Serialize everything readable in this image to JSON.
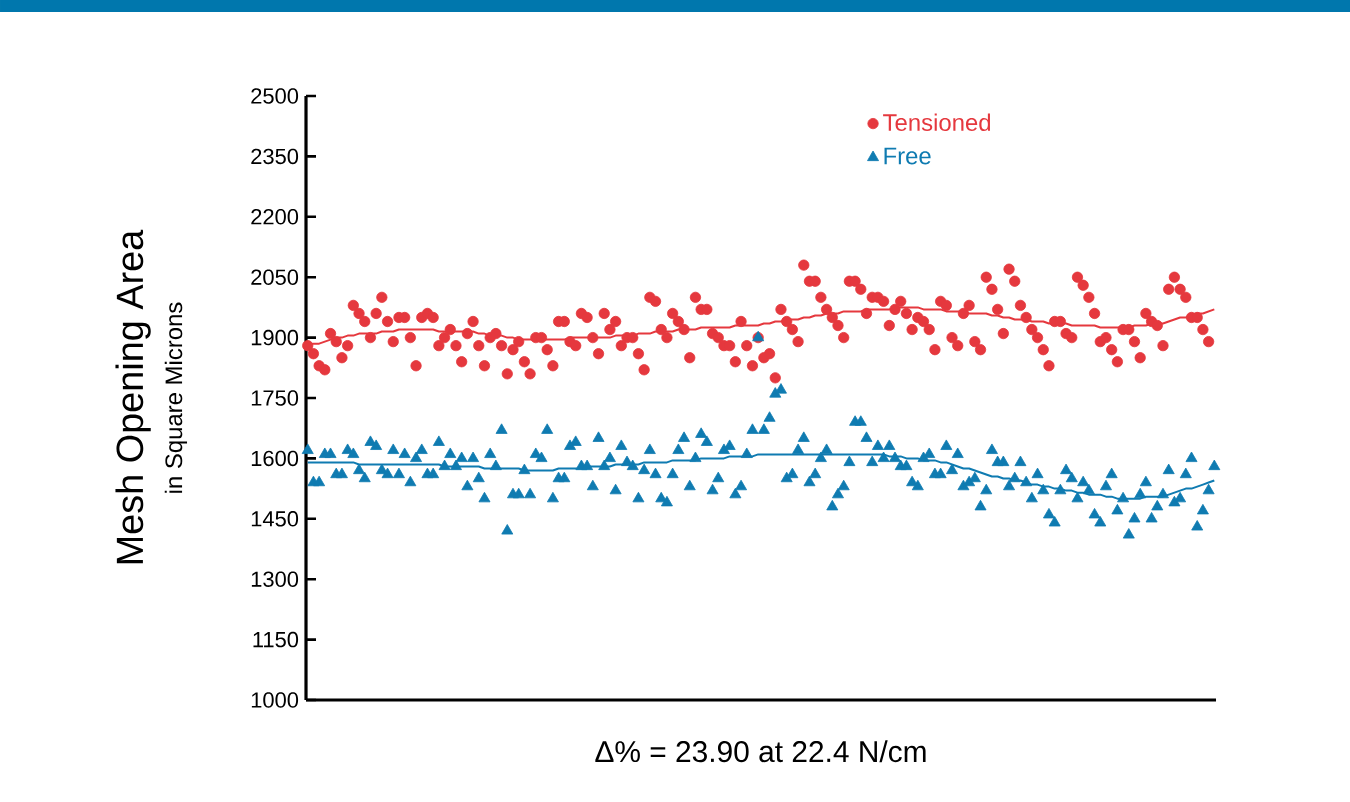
{
  "chart_data": {
    "type": "scatter",
    "ylabel": "Mesh Opening Area",
    "xlabel": "Δ% = 23.90 at 22.4 N/cm",
    "annotations": [
      "in Square Microns"
    ],
    "categories": [
      null,
      null,
      null,
      null,
      null,
      null,
      null,
      null,
      null,
      null,
      null,
      null,
      null,
      null,
      null,
      null,
      null,
      null,
      null,
      null,
      null,
      null,
      null,
      null,
      null,
      null,
      null,
      null,
      null,
      null,
      null,
      null,
      null,
      null,
      null,
      null,
      null,
      null,
      null,
      null,
      null,
      null,
      null,
      null,
      null,
      null,
      null,
      null,
      null,
      null,
      null,
      null,
      null,
      null,
      null,
      null,
      null,
      null,
      null,
      null,
      null,
      null,
      null,
      null,
      null,
      null,
      null,
      null,
      null,
      null,
      null,
      null,
      null,
      null,
      null,
      null,
      null,
      null,
      null,
      null,
      null,
      null,
      null,
      null,
      null,
      null,
      null,
      null,
      null,
      null,
      null,
      null,
      null,
      null,
      null,
      null,
      null,
      null,
      null,
      null,
      null,
      null,
      null,
      null,
      null,
      null,
      null,
      null,
      null,
      null,
      null,
      null,
      null,
      null,
      null,
      null,
      null,
      null,
      null,
      null,
      null,
      null,
      null,
      null,
      null,
      null,
      null,
      null,
      null,
      null,
      null,
      null,
      null,
      null,
      null,
      null,
      null,
      null,
      null,
      null,
      null,
      null,
      null,
      null,
      null,
      null,
      null,
      null,
      null,
      null,
      null,
      null,
      null,
      null,
      null,
      null,
      null,
      null,
      null,
      null
    ],
    "ylim": [
      1000,
      2500
    ],
    "yticks": [
      1000,
      1150,
      1300,
      1450,
      1600,
      1750,
      1900,
      2050,
      2200,
      2350,
      2500
    ],
    "tick_labels": "y",
    "legend": "top right",
    "series": [
      {
        "name": "Tensioned",
        "marker": "circle",
        "color": "#e5383e",
        "values": [
          1880,
          1860,
          1830,
          1820,
          1910,
          1890,
          1850,
          1880,
          1980,
          1960,
          1940,
          1900,
          1960,
          2000,
          1940,
          1890,
          1950,
          1950,
          1900,
          1830,
          1950,
          1960,
          1950,
          1880,
          1900,
          1920,
          1880,
          1840,
          1910,
          1940,
          1880,
          1830,
          1900,
          1910,
          1880,
          1810,
          1870,
          1890,
          1840,
          1810,
          1900,
          1900,
          1870,
          1830,
          1940,
          1940,
          1890,
          1880,
          1960,
          1950,
          1900,
          1860,
          1960,
          1920,
          1940,
          1880,
          1900,
          1900,
          1860,
          1820,
          2000,
          1990,
          1920,
          1900,
          1960,
          1940,
          1920,
          1850,
          2000,
          1970,
          1970,
          1910,
          1900,
          1880,
          1880,
          1840,
          1940,
          1880,
          1830,
          1900,
          1850,
          1860,
          1800,
          1970,
          1940,
          1920,
          1890,
          2080,
          2040,
          2040,
          2000,
          1970,
          1950,
          1930,
          1900,
          2040,
          2040,
          2020,
          1960,
          2000,
          2000,
          1990,
          1930,
          1970,
          1990,
          1960,
          1920,
          1950,
          1940,
          1920,
          1870,
          1990,
          1980,
          1900,
          1880,
          1960,
          1980,
          1890,
          1870,
          2050,
          2020,
          1970,
          1910,
          2070,
          2040,
          1980,
          1950,
          1920,
          1900,
          1870,
          1830,
          1940,
          1940,
          1910,
          1900,
          2050,
          2030,
          2000,
          1960,
          1890,
          1900,
          1870,
          1840,
          1920,
          1920,
          1890,
          1850,
          1960,
          1940,
          1930,
          1880,
          2020,
          2050,
          2020,
          2000,
          1950,
          1950,
          1920,
          1890,
          null
        ]
      },
      {
        "name": "Free",
        "marker": "triangle",
        "color": "#0f7bb1",
        "values": [
          1620,
          1540,
          1540,
          1610,
          1610,
          1560,
          1560,
          1620,
          1610,
          1570,
          1550,
          1640,
          1630,
          1570,
          1560,
          1620,
          1560,
          1610,
          1540,
          1600,
          1620,
          1560,
          1560,
          1640,
          1580,
          1610,
          1580,
          1600,
          1530,
          1600,
          1550,
          1500,
          1610,
          1580,
          1670,
          1420,
          1510,
          1510,
          1570,
          1510,
          1610,
          1600,
          1670,
          1500,
          1550,
          1550,
          1630,
          1640,
          1580,
          1580,
          1530,
          1650,
          1580,
          1600,
          1520,
          1630,
          1590,
          1580,
          1500,
          1570,
          1620,
          1560,
          1500,
          1490,
          1560,
          1620,
          1650,
          1530,
          1600,
          1660,
          1640,
          1520,
          1550,
          1620,
          1630,
          1510,
          1530,
          1610,
          1670,
          1900,
          1670,
          1700,
          1760,
          1770,
          1550,
          1560,
          1620,
          1650,
          1540,
          1560,
          1600,
          1620,
          1480,
          1510,
          1530,
          1590,
          1690,
          1690,
          1650,
          1590,
          1630,
          1600,
          1630,
          1600,
          1580,
          1580,
          1540,
          1530,
          1600,
          1610,
          1560,
          1560,
          1630,
          1570,
          1610,
          1530,
          1540,
          1550,
          1480,
          1520,
          1620,
          1590,
          1590,
          1530,
          1550,
          1590,
          1540,
          1500,
          1560,
          1520,
          1460,
          1440,
          1520,
          1570,
          1550,
          1500,
          1540,
          1520,
          1460,
          1440,
          1530,
          1560,
          1470,
          1500,
          1410,
          1450,
          1510,
          1540,
          1450,
          1480,
          1510,
          1570,
          1490,
          1500,
          1560,
          1600,
          1430,
          1470,
          1520,
          1580
        ]
      },
      {
        "type": "line",
        "color": "#e5383e",
        "values": [
          1880,
          1885,
          1885,
          1890,
          1895,
          1900,
          1900,
          1905,
          1905,
          1910,
          1910,
          1910,
          1910,
          1915,
          1915,
          1915,
          1920,
          1920,
          1920,
          1920,
          1920,
          1920,
          1920,
          1915,
          1915,
          1915,
          1915,
          1915,
          1915,
          1915,
          1910,
          1910,
          1905,
          1905,
          1905,
          1900,
          1900,
          1895,
          1895,
          1895,
          1895,
          1895,
          1895,
          1895,
          1895,
          1895,
          1900,
          1900,
          1900,
          1900,
          1900,
          1900,
          1900,
          1900,
          1905,
          1905,
          1905,
          1905,
          1910,
          1910,
          1910,
          1915,
          1915,
          1915,
          1915,
          1920,
          1920,
          1920,
          1920,
          1925,
          1925,
          1925,
          1925,
          1925,
          1925,
          1930,
          1930,
          1930,
          1930,
          1930,
          1935,
          1935,
          1940,
          1940,
          1945,
          1945,
          1945,
          1950,
          1950,
          1955,
          1955,
          1960,
          1960,
          1960,
          1965,
          1965,
          1965,
          1965,
          1970,
          1970,
          1970,
          1970,
          1970,
          1975,
          1975,
          1975,
          1975,
          1975,
          1970,
          1970,
          1970,
          1970,
          1965,
          1965,
          1965,
          1965,
          1960,
          1960,
          1960,
          1960,
          1955,
          1955,
          1950,
          1950,
          1945,
          1945,
          1945,
          1940,
          1940,
          1940,
          1935,
          1935,
          1935,
          1935,
          1930,
          1930,
          1930,
          1930,
          1930,
          1925,
          1925,
          1925,
          1925,
          1925,
          1925,
          1930,
          1930,
          1930,
          1935,
          1935,
          1935,
          1940,
          1945,
          1950,
          1950,
          1955,
          1960,
          1960,
          1965,
          1970
        ]
      },
      {
        "type": "line",
        "color": "#0f7bb1",
        "values": [
          1590,
          1590,
          1590,
          1590,
          1590,
          1590,
          1590,
          1590,
          1590,
          1585,
          1585,
          1585,
          1585,
          1585,
          1585,
          1585,
          1585,
          1585,
          1585,
          1585,
          1585,
          1585,
          1585,
          1585,
          1580,
          1580,
          1580,
          1580,
          1580,
          1580,
          1580,
          1575,
          1575,
          1575,
          1575,
          1575,
          1575,
          1575,
          1570,
          1570,
          1570,
          1570,
          1570,
          1570,
          1575,
          1575,
          1575,
          1575,
          1575,
          1580,
          1580,
          1580,
          1580,
          1580,
          1585,
          1585,
          1585,
          1585,
          1585,
          1590,
          1590,
          1590,
          1590,
          1590,
          1595,
          1595,
          1595,
          1595,
          1595,
          1600,
          1600,
          1600,
          1600,
          1600,
          1605,
          1605,
          1605,
          1605,
          1605,
          1610,
          1610,
          1610,
          1610,
          1610,
          1610,
          1610,
          1610,
          1610,
          1610,
          1610,
          1610,
          1610,
          1610,
          1610,
          1610,
          1610,
          1610,
          1610,
          1610,
          1610,
          1610,
          1610,
          1605,
          1605,
          1605,
          1600,
          1600,
          1600,
          1595,
          1595,
          1595,
          1590,
          1590,
          1585,
          1580,
          1575,
          1575,
          1570,
          1565,
          1560,
          1555,
          1555,
          1550,
          1550,
          1545,
          1545,
          1540,
          1535,
          1535,
          1530,
          1530,
          1525,
          1525,
          1520,
          1520,
          1515,
          1515,
          1510,
          1510,
          1510,
          1505,
          1505,
          1500,
          1500,
          1500,
          1500,
          1500,
          1505,
          1505,
          1505,
          1505,
          1510,
          1515,
          1520,
          1525,
          1525,
          1530,
          1535,
          1540,
          1545
        ]
      }
    ]
  }
}
